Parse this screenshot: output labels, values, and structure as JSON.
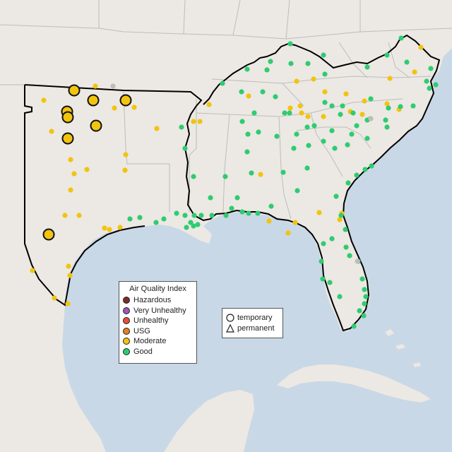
{
  "map": {
    "colors": {
      "water": "#c9d8e6",
      "land": "#ece8e3",
      "border": "#bdbdbd",
      "region": "#000000",
      "good": "#2ecc71",
      "moderate": "#f1c40f",
      "usg": "#e67e22",
      "unhealthy": "#e74c3c",
      "very_unhealthy": "#9b59b6",
      "hazardous": "#7b2d26",
      "no_data": "#bdbdbd"
    }
  },
  "legend_aqi": {
    "title": "Air Quality Index",
    "items": [
      {
        "label": "Hazardous",
        "color": "#7b2d26"
      },
      {
        "label": "Very Unhealthy",
        "color": "#9b59b6"
      },
      {
        "label": "Unhealthy",
        "color": "#e74c3c"
      },
      {
        "label": "USG",
        "color": "#e67e22"
      },
      {
        "label": "Moderate",
        "color": "#f1c40f"
      },
      {
        "label": "Good",
        "color": "#2ecc71"
      }
    ]
  },
  "legend_shape": {
    "items": [
      {
        "label": "temporary",
        "shape": "circle"
      },
      {
        "label": "permanent",
        "shape": "triangle"
      }
    ]
  }
}
